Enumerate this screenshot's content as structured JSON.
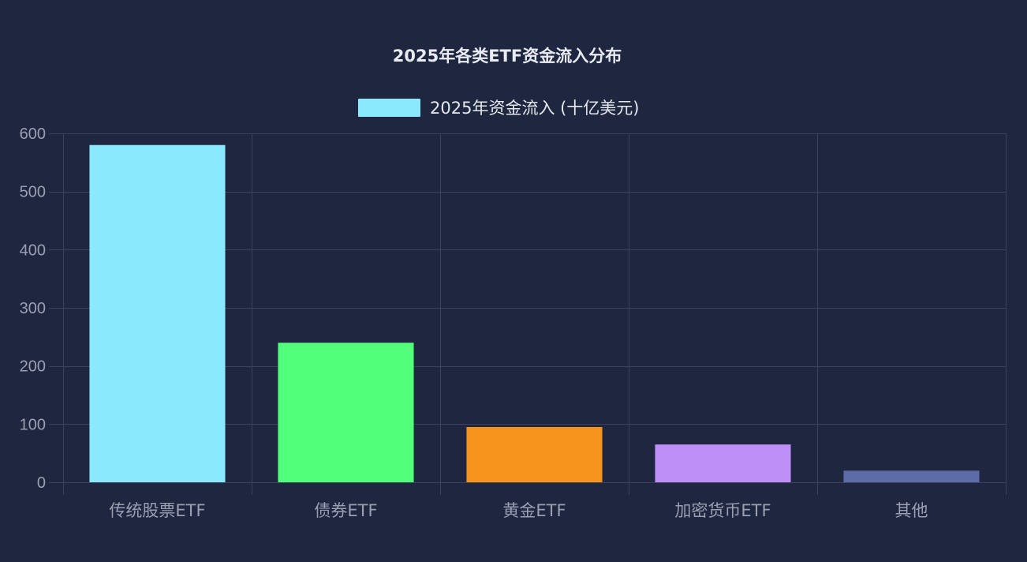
{
  "chart_data": {
    "type": "bar",
    "title": "2025年各类ETF资金流入分布",
    "categories": [
      "传统股票ETF",
      "债券ETF",
      "黄金ETF",
      "加密货币ETF",
      "其他"
    ],
    "series": [
      {
        "name": "2025年资金流入 (十亿美元)",
        "values": [
          580,
          240,
          95,
          65,
          20
        ],
        "colors": [
          "#8ae9fc",
          "#52ff7a",
          "#f7941d",
          "#bf8ff8",
          "#5d6ca8"
        ]
      }
    ],
    "ylim": [
      0,
      600
    ],
    "yticks": [
      0,
      100,
      200,
      300,
      400,
      500,
      600
    ],
    "grid": true,
    "legend_position": "top-center",
    "legend_swatch_color": "#8ae9fc"
  }
}
